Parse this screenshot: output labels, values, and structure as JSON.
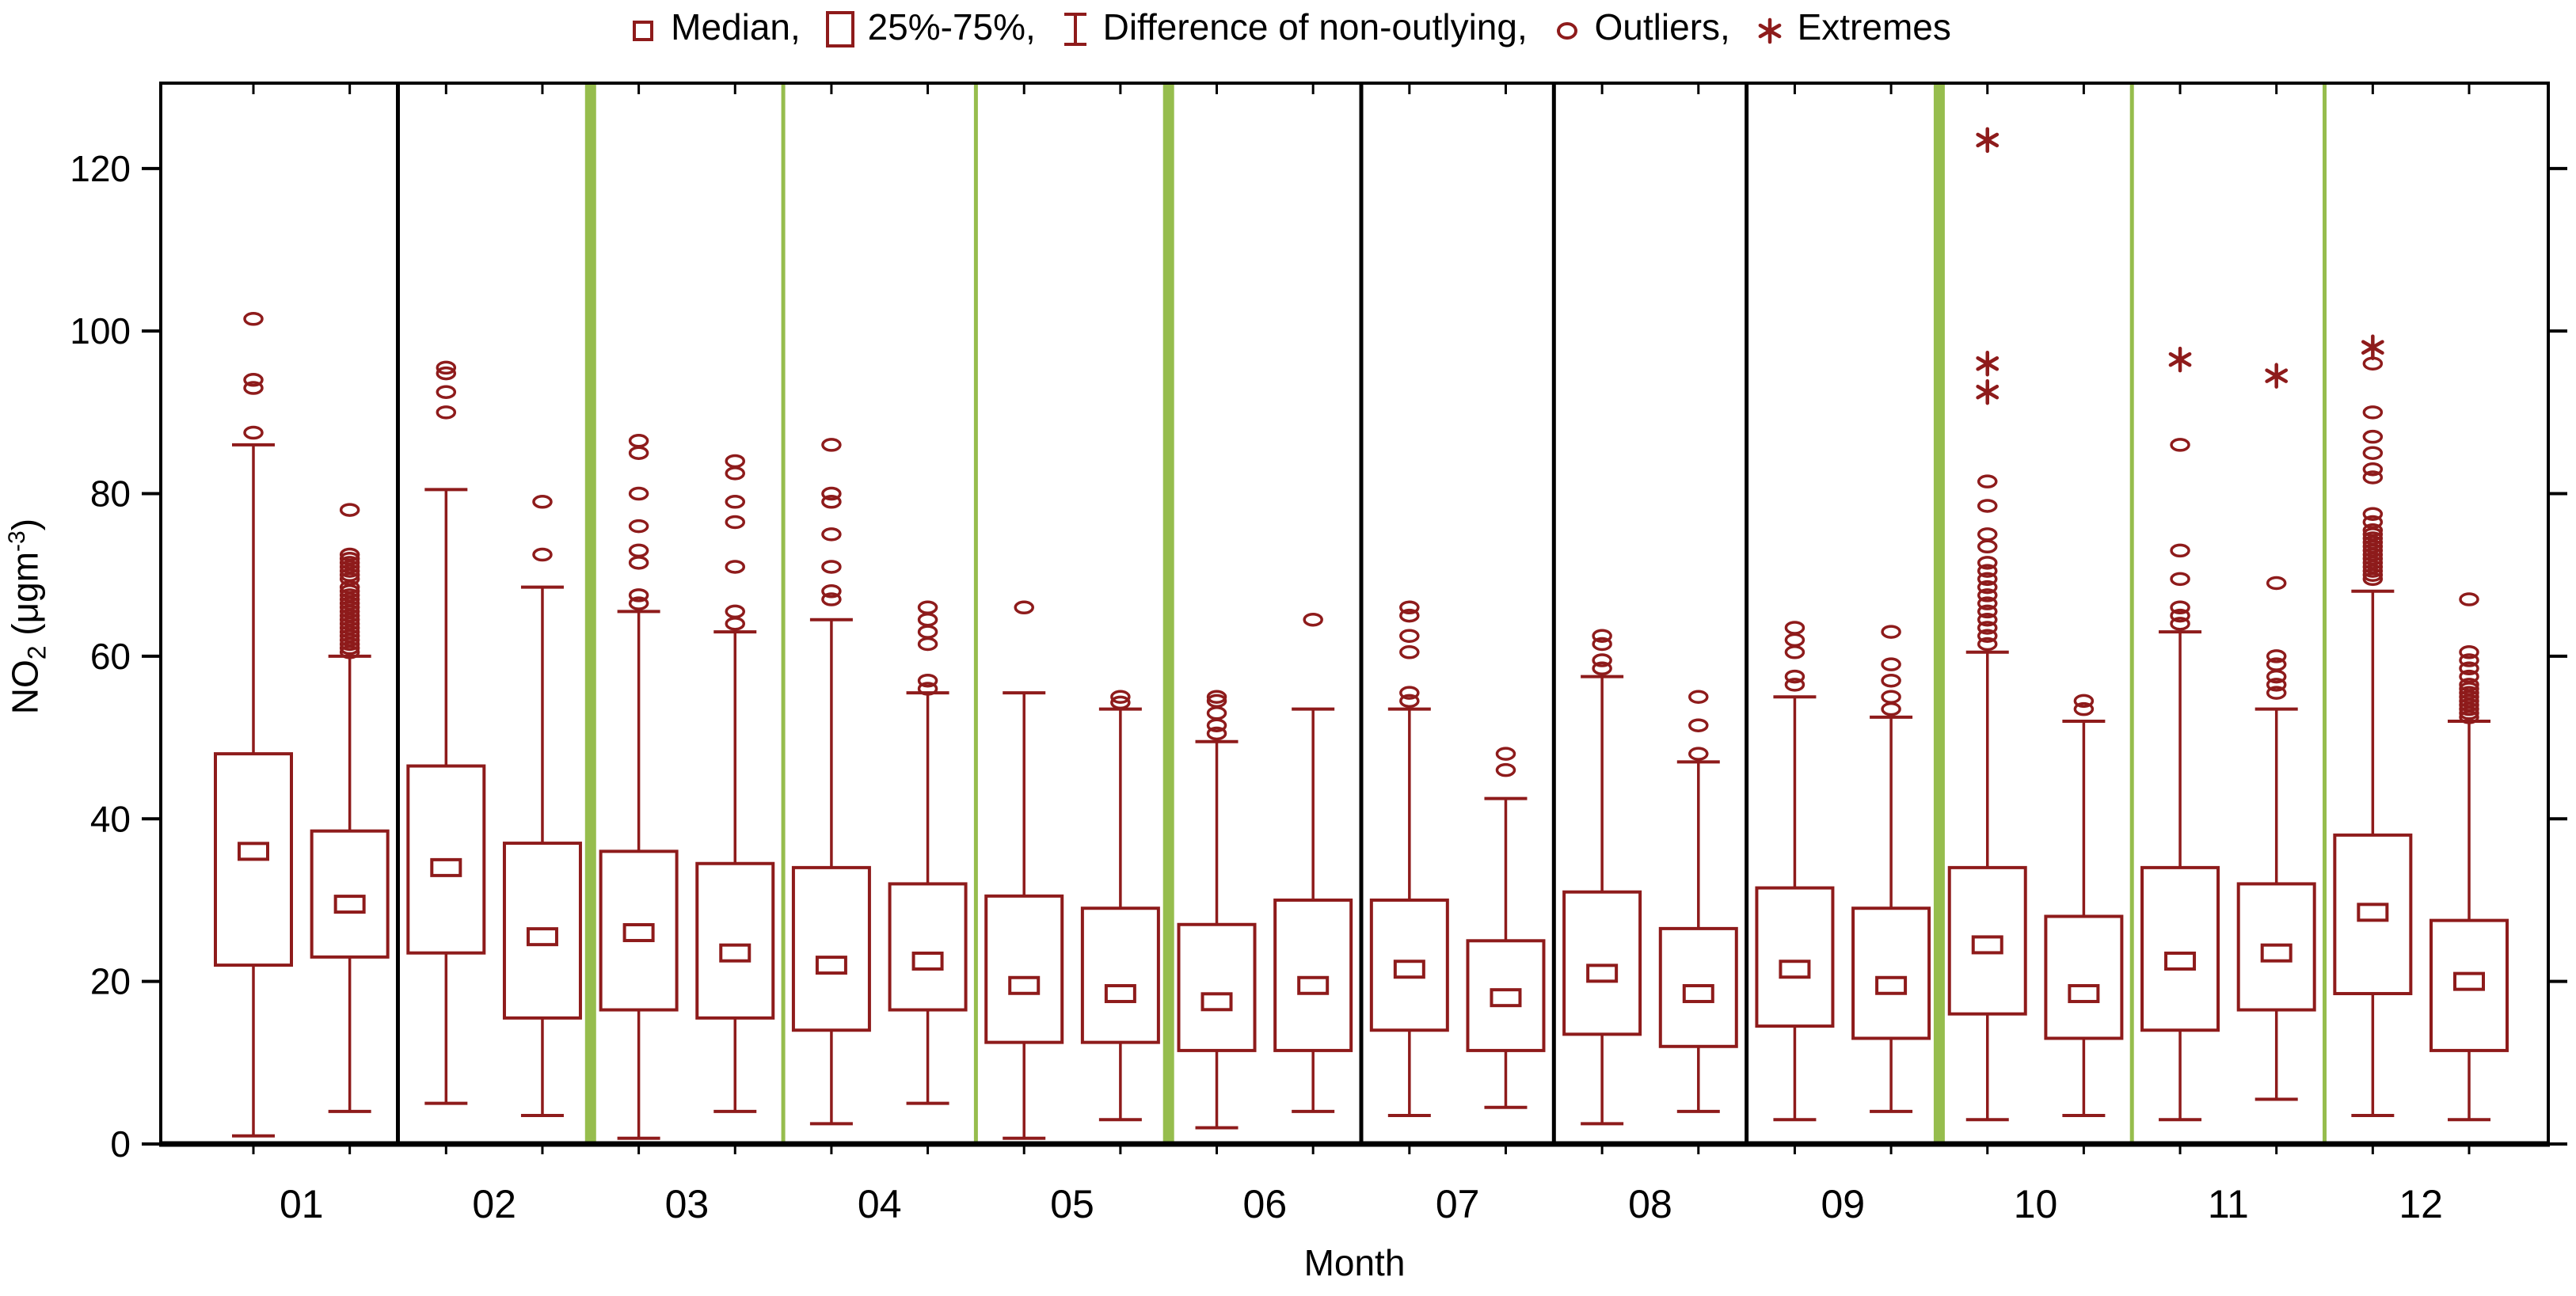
{
  "legend": {
    "items": [
      {
        "icon": "median-square-icon",
        "label": "Median, "
      },
      {
        "icon": "quartile-box-icon",
        "label": "25%-75%, "
      },
      {
        "icon": "whisker-icon",
        "label": "Difference of non-outlying, "
      },
      {
        "icon": "outlier-circle-icon",
        "label": "Outliers, "
      },
      {
        "icon": "extreme-asterisk-icon",
        "label": "Extremes"
      }
    ]
  },
  "y_axis": {
    "title_pre": "NO",
    "title_sub": "2",
    "title_mid": " (μgm",
    "title_sup": "-3",
    "title_post": ")",
    "ticks": [
      0,
      20,
      40,
      60,
      80,
      100,
      120
    ]
  },
  "x_axis": {
    "title": "Month"
  },
  "colors": {
    "series": "#8E1B1B",
    "separator_green": "#96BD4D",
    "separator_black": "#000000",
    "axis": "#000000",
    "background": "#FFFFFF"
  },
  "chart_data": {
    "type": "box",
    "title": "",
    "xlabel": "Month",
    "ylabel": "NO2 (ugm-3)",
    "ylim": [
      0,
      130.5
    ],
    "grid": false,
    "legend_position": "top-center",
    "boxes_per_category": 2,
    "categories": [
      "01",
      "02",
      "03",
      "04",
      "05",
      "06",
      "07",
      "08",
      "09",
      "10",
      "11",
      "12"
    ],
    "months": [
      {
        "label": "01",
        "separator_after": "black",
        "boxes": [
          {
            "lo": 1,
            "q1": 22,
            "med": 36,
            "q3": 48,
            "hi": 86,
            "out": [
              87.5,
              93,
              94,
              101.5
            ],
            "ext": []
          },
          {
            "lo": 4,
            "q1": 23,
            "med": 29.5,
            "q3": 38.5,
            "hi": 60,
            "out": [
              60.5,
              61,
              61.5,
              62,
              62.5,
              63,
              63.5,
              64,
              64.5,
              65,
              65.5,
              66,
              66.5,
              67,
              67.5,
              68,
              68.5,
              69.5,
              70,
              70.5,
              71,
              71.5,
              72,
              72.5,
              78
            ],
            "ext": []
          }
        ]
      },
      {
        "label": "02",
        "separator_after": "green-thick",
        "boxes": [
          {
            "lo": 5,
            "q1": 23.5,
            "med": 34,
            "q3": 46.5,
            "hi": 80.5,
            "out": [
              90,
              92.5,
              94.8,
              95.5
            ],
            "ext": []
          },
          {
            "lo": 3.5,
            "q1": 15.5,
            "med": 25.5,
            "q3": 37,
            "hi": 68.5,
            "out": [
              72.5,
              79
            ],
            "ext": []
          }
        ]
      },
      {
        "label": "03",
        "separator_after": "green-thin",
        "boxes": [
          {
            "lo": 0.7,
            "q1": 16.5,
            "med": 26,
            "q3": 36,
            "hi": 65.5,
            "out": [
              66.5,
              67.5,
              71.5,
              73,
              76,
              80,
              85,
              86.5
            ],
            "ext": []
          },
          {
            "lo": 4,
            "q1": 15.5,
            "med": 23.5,
            "q3": 34.5,
            "hi": 63,
            "out": [
              64,
              65.5,
              71,
              76.5,
              79,
              82.5,
              84
            ],
            "ext": []
          }
        ]
      },
      {
        "label": "04",
        "separator_after": "green-thin",
        "boxes": [
          {
            "lo": 2.5,
            "q1": 14,
            "med": 22,
            "q3": 34,
            "hi": 64.5,
            "out": [
              67,
              68,
              71,
              75,
              79,
              80,
              86
            ],
            "ext": []
          },
          {
            "lo": 5,
            "q1": 16.5,
            "med": 22.5,
            "q3": 32,
            "hi": 55.5,
            "out": [
              56,
              57,
              61.5,
              63,
              64.5,
              66
            ],
            "ext": []
          }
        ]
      },
      {
        "label": "05",
        "separator_after": "green-thick",
        "boxes": [
          {
            "lo": 0.7,
            "q1": 12.5,
            "med": 19.5,
            "q3": 30.5,
            "hi": 55.5,
            "out": [
              66
            ],
            "ext": []
          },
          {
            "lo": 3,
            "q1": 12.5,
            "med": 18.5,
            "q3": 29,
            "hi": 53.5,
            "out": [
              54.3,
              55
            ],
            "ext": []
          }
        ]
      },
      {
        "label": "06",
        "separator_after": "black",
        "boxes": [
          {
            "lo": 2,
            "q1": 11.5,
            "med": 17.5,
            "q3": 27,
            "hi": 49.5,
            "out": [
              50.5,
              51.5,
              53,
              54.5,
              55
            ],
            "ext": []
          },
          {
            "lo": 4,
            "q1": 11.5,
            "med": 19.5,
            "q3": 30,
            "hi": 53.5,
            "out": [
              64.5
            ],
            "ext": []
          }
        ]
      },
      {
        "label": "07",
        "separator_after": "black",
        "boxes": [
          {
            "lo": 3.5,
            "q1": 14,
            "med": 21.5,
            "q3": 30,
            "hi": 53.5,
            "out": [
              54.5,
              55.5,
              60.5,
              62.5,
              65,
              66
            ],
            "ext": []
          },
          {
            "lo": 4.5,
            "q1": 11.5,
            "med": 18,
            "q3": 25,
            "hi": 42.5,
            "out": [
              46,
              48
            ],
            "ext": []
          }
        ]
      },
      {
        "label": "08",
        "separator_after": "black",
        "boxes": [
          {
            "lo": 2.5,
            "q1": 13.5,
            "med": 21,
            "q3": 31,
            "hi": 57.5,
            "out": [
              58.5,
              59.5,
              61.5,
              62.5
            ],
            "ext": []
          },
          {
            "lo": 4,
            "q1": 12,
            "med": 18.5,
            "q3": 26.5,
            "hi": 47,
            "out": [
              48,
              51.5,
              55
            ],
            "ext": []
          }
        ]
      },
      {
        "label": "09",
        "separator_after": "green-thick",
        "boxes": [
          {
            "lo": 3,
            "q1": 14.5,
            "med": 21.5,
            "q3": 31.5,
            "hi": 55,
            "out": [
              56.5,
              57.5,
              60.5,
              62,
              63.5
            ],
            "ext": []
          },
          {
            "lo": 4,
            "q1": 13,
            "med": 19.5,
            "q3": 29,
            "hi": 52.5,
            "out": [
              53.5,
              55,
              57,
              59,
              63
            ],
            "ext": []
          }
        ]
      },
      {
        "label": "10",
        "separator_after": "green-thin",
        "boxes": [
          {
            "lo": 3,
            "q1": 16,
            "med": 24.5,
            "q3": 34,
            "hi": 60.5,
            "out": [
              61.5,
              62.5,
              63.5,
              64.5,
              65.5,
              66.5,
              67.5,
              68.5,
              69.5,
              70.5,
              71.5,
              73.5,
              75,
              78.5,
              81.5
            ],
            "ext": [
              92.5,
              96,
              123.5
            ]
          },
          {
            "lo": 3.5,
            "q1": 13,
            "med": 18.5,
            "q3": 28,
            "hi": 52,
            "out": [
              53.5,
              54.5
            ],
            "ext": []
          }
        ]
      },
      {
        "label": "11",
        "separator_after": "green-thin",
        "boxes": [
          {
            "lo": 3,
            "q1": 14,
            "med": 22.5,
            "q3": 34,
            "hi": 63,
            "out": [
              64,
              65,
              66,
              69.5,
              73,
              86
            ],
            "ext": [
              96.5
            ]
          },
          {
            "lo": 5.5,
            "q1": 16.5,
            "med": 23.5,
            "q3": 32,
            "hi": 53.5,
            "out": [
              55.5,
              56.5,
              57.5,
              59,
              60,
              69
            ],
            "ext": [
              94.5
            ]
          }
        ]
      },
      {
        "label": "12",
        "separator_after": null,
        "boxes": [
          {
            "lo": 3.5,
            "q1": 18.5,
            "med": 28.5,
            "q3": 38,
            "hi": 68,
            "out": [
              69.5,
              70,
              70.5,
              71,
              71.5,
              72,
              72.5,
              73,
              73.5,
              74,
              74.5,
              75,
              75.5,
              76.5,
              77.5,
              82,
              83,
              85,
              87,
              90,
              96
            ],
            "ext": [
              98
            ]
          },
          {
            "lo": 3,
            "q1": 11.5,
            "med": 20,
            "q3": 27.5,
            "hi": 52,
            "out": [
              52.5,
              53,
              53.5,
              54,
              54.5,
              55,
              55.5,
              56,
              56.5,
              57.5,
              58.5,
              59.5,
              60.5,
              67
            ],
            "ext": []
          }
        ]
      }
    ]
  }
}
